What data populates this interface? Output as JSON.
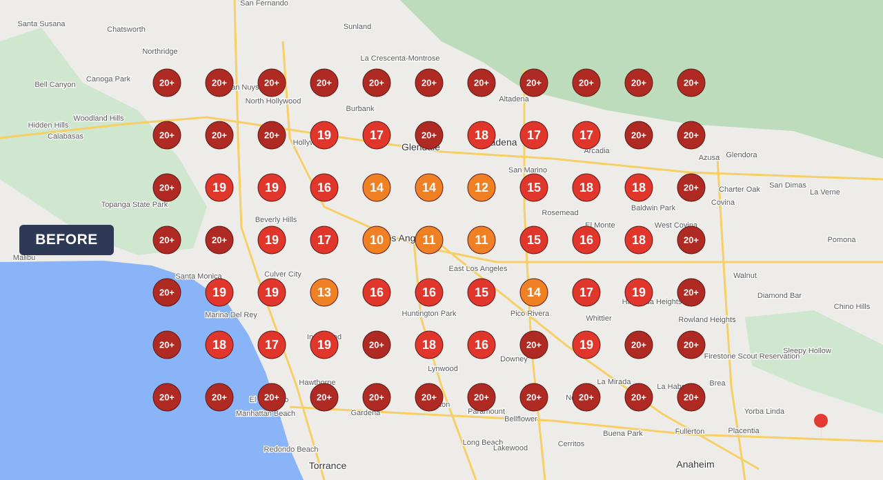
{
  "badge": "BEFORE",
  "grid": [
    [
      "20+",
      "20+",
      "20+",
      "20+",
      "20+",
      "20+",
      "20+",
      "20+",
      "20+",
      "20+",
      "20+"
    ],
    [
      "20+",
      "20+",
      "20+",
      "19",
      "17",
      "20+",
      "18",
      "17",
      "17",
      "20+",
      "20+"
    ],
    [
      "20+",
      "19",
      "19",
      "16",
      "14",
      "14",
      "12",
      "15",
      "18",
      "18",
      "20+"
    ],
    [
      "20+",
      "20+",
      "19",
      "17",
      "10",
      "11",
      "11",
      "15",
      "16",
      "18",
      "20+"
    ],
    [
      "20+",
      "19",
      "19",
      "13",
      "16",
      "16",
      "15",
      "14",
      "17",
      "19",
      "20+"
    ],
    [
      "20+",
      "18",
      "17",
      "19",
      "20+",
      "18",
      "16",
      "20+",
      "19",
      "20+",
      "20+"
    ],
    [
      "20+",
      "20+",
      "20+",
      "20+",
      "20+",
      "20+",
      "20+",
      "20+",
      "20+",
      "20+",
      "20+"
    ]
  ],
  "places": [
    "San Fernando",
    "Santa Susana",
    "Bell Canyon",
    "Calabasas",
    "Hidden Hills",
    "Topanga State Park",
    "Burbank",
    "Glendale",
    "Pasadena",
    "Altadena",
    "Arcadia",
    "Azusa",
    "Glendora",
    "Covina",
    "Pomona",
    "Beverly Hills",
    "Los Angeles",
    "Santa Monica",
    "Culver City",
    "Malibu",
    "Inglewood",
    "Huntington Park",
    "Whittier",
    "Downey",
    "Lynwood",
    "Compton",
    "Torrance",
    "Long Beach",
    "Lakewood",
    "Cerritos",
    "Buena Park",
    "Fullerton",
    "Anaheim",
    "Placentia",
    "Yorba Linda",
    "Brea",
    "La Habra",
    "El Monte",
    "Rosemead",
    "Baldwin Park",
    "West Covina",
    "Walnut",
    "Diamond Bar",
    "Chino Hills",
    "Redondo Beach",
    "Manhattan Beach",
    "El Segundo",
    "Hawthorne",
    "Gardena",
    "Paramount",
    "Bellflower",
    "La Mirada",
    "Norwalk",
    "Pico Rivera",
    "East Los Angeles",
    "San Marino",
    "La Crescenta-Montrose",
    "Sunland",
    "North Hollywood",
    "Van Nuys",
    "Canoga Park",
    "Woodland Hills",
    "Chatsworth",
    "Northridge",
    "Sleepy Hollow",
    "Rowland Heights",
    "Hacienda Heights",
    "Charter Oak",
    "San Dimas",
    "La Verne",
    "Firestone Scout Reservation",
    "Marina Del Rey",
    "Hollywood"
  ]
}
